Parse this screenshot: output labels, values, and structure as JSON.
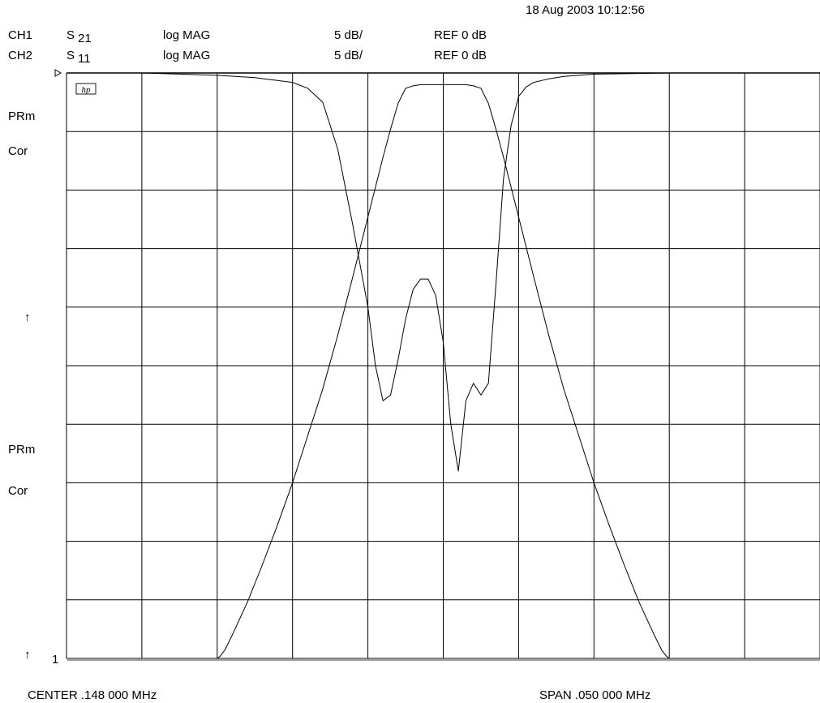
{
  "header": {
    "timestamp": "18 Aug 2003  10:12:56",
    "channels": [
      {
        "ch": "CH1",
        "param": "S",
        "param_sub": "21",
        "format": "log MAG",
        "scale": "5 dB/",
        "ref": "REF 0 dB"
      },
      {
        "ch": "CH2",
        "param": "S",
        "param_sub": "11",
        "format": "log MAG",
        "scale": "5 dB/",
        "ref": "REF 0 dB"
      }
    ]
  },
  "side_labels": {
    "ch1_prm": "PRm",
    "ch1_cor": "Cor",
    "ch1_marker": "↑",
    "ch2_prm": "PRm",
    "ch2_cor": "Cor",
    "ch2_marker": "↑",
    "ch2_ref_index": "1"
  },
  "logo_text": "hp",
  "footer": {
    "center": "CENTER   .148 000 MHz",
    "span": "SPAN   .050 000 MHz"
  },
  "chart_data": [
    {
      "type": "line",
      "series": [
        {
          "name": "S21",
          "x": [
            -0.025,
            -0.0225,
            -0.02,
            -0.0175,
            -0.015,
            -0.0148,
            -0.0145,
            -0.014,
            -0.013,
            -0.012,
            -0.011,
            -0.01,
            -0.009,
            -0.008,
            -0.007,
            -0.006,
            -0.005,
            -0.004,
            -0.0035,
            -0.003,
            -0.0025,
            -0.002,
            -0.0015,
            -0.001,
            0,
            0.001,
            0.0015,
            0.002,
            0.0025,
            0.003,
            0.0035,
            0.004,
            0.005,
            0.006,
            0.007,
            0.008,
            0.009,
            0.01,
            0.011,
            0.012,
            0.013,
            0.014,
            0.0145,
            0.0148,
            0.015,
            0.0175,
            0.02,
            0.0225,
            0.025
          ],
          "y": [
            -50,
            -50,
            -50,
            -50,
            -50,
            -49.8,
            -49.3,
            -48.0,
            -45.2,
            -42.0,
            -38.6,
            -35.0,
            -31.0,
            -27.0,
            -22.4,
            -17.4,
            -12.3,
            -7.2,
            -4.8,
            -2.6,
            -1.3,
            -1.1,
            -1.0,
            -1.0,
            -1.0,
            -1.0,
            -1.0,
            -1.1,
            -1.3,
            -2.6,
            -4.8,
            -7.2,
            -12.3,
            -17.4,
            -22.4,
            -27.0,
            -31.0,
            -35.0,
            -38.6,
            -42.0,
            -45.2,
            -48.0,
            -49.3,
            -49.8,
            -50,
            -50,
            -50,
            -50,
            -50
          ]
        },
        {
          "name": "S11",
          "x": [
            -0.025,
            -0.0225,
            -0.02,
            -0.0175,
            -0.015,
            -0.0125,
            -0.01,
            -0.009,
            -0.008,
            -0.007,
            -0.006,
            -0.005,
            -0.0045,
            -0.004,
            -0.0035,
            -0.003,
            -0.0025,
            -0.002,
            -0.0015,
            -0.001,
            -0.0005,
            0,
            0.0005,
            0.001,
            0.0015,
            0.002,
            0.0025,
            0.003,
            0.0035,
            0.004,
            0.0045,
            0.005,
            0.0055,
            0.006,
            0.007,
            0.008,
            0.009,
            0.01,
            0.0125,
            0.015,
            0.0175,
            0.02,
            0.0225,
            0.025
          ],
          "y": [
            0,
            0,
            0,
            -0.1,
            -0.2,
            -0.4,
            -0.8,
            -1.3,
            -2.5,
            -6.5,
            -13.0,
            -20.0,
            -25.0,
            -28.0,
            -27.5,
            -24.5,
            -21.0,
            -18.5,
            -17.6,
            -17.6,
            -19.0,
            -23.0,
            -30.0,
            -34.0,
            -28.0,
            -26.5,
            -27.5,
            -26.5,
            -18.0,
            -9.0,
            -4.5,
            -2.0,
            -1.2,
            -0.8,
            -0.5,
            -0.3,
            -0.2,
            -0.1,
            -0.05,
            0,
            0,
            0,
            0,
            0
          ]
        }
      ],
      "xlim": [
        -0.025,
        0.025
      ],
      "ylim": [
        -50,
        0
      ],
      "grid": true,
      "x_divisions": 10,
      "y_divisions": 10
    }
  ]
}
